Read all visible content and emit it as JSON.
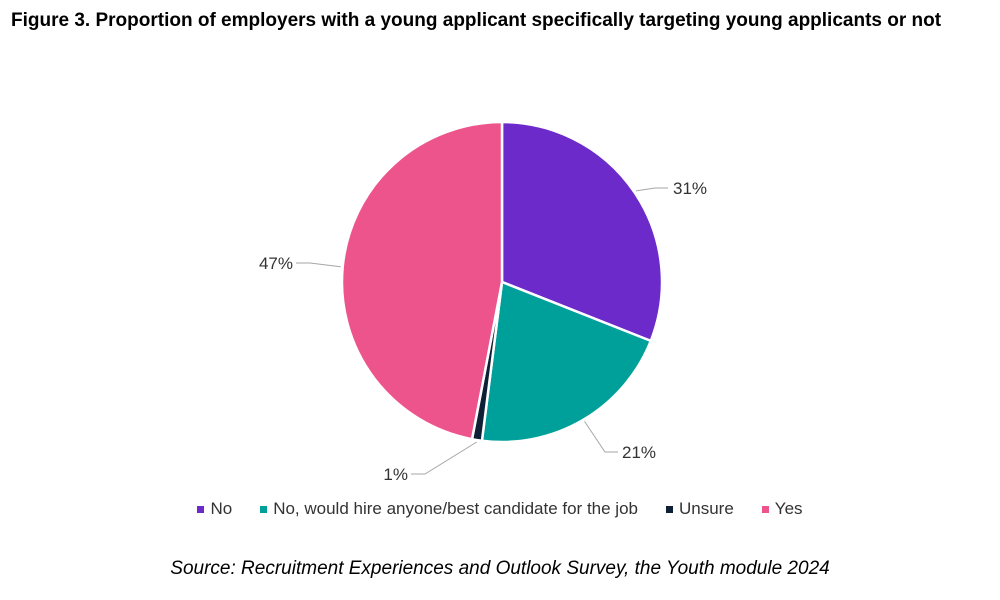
{
  "title": "Figure 3. Proportion of employers with a young applicant specifically targeting young applicants or not",
  "source": "Source: Recruitment Experiences and Outlook Survey, the Youth module 2024",
  "chart_data": {
    "type": "pie",
    "title": "Figure 3. Proportion of employers with a young applicant specifically targeting young applicants or not",
    "slices": [
      {
        "name": "No",
        "value": 31,
        "label": "31%",
        "color": "#6B2AC9"
      },
      {
        "name": "No, would hire anyone/best candidate for the job",
        "value": 21,
        "label": "21%",
        "color": "#00A09A"
      },
      {
        "name": "Unsure",
        "value": 1,
        "label": "1%",
        "color": "#0E1F36"
      },
      {
        "name": "Yes",
        "value": 47,
        "label": "47%",
        "color": "#EE548C"
      }
    ],
    "legend_position": "bottom"
  }
}
